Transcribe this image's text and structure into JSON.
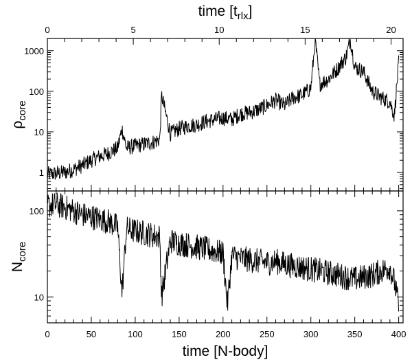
{
  "chart_data": [
    {
      "id": "density",
      "type": "line",
      "ylabel": {
        "main": "ρ",
        "sub": "core"
      },
      "yscale": "log",
      "ylim": [
        0.35,
        2000
      ],
      "yticks": [
        1,
        10,
        100,
        1000
      ],
      "ytick_labels": [
        "1",
        "10",
        "100",
        "1000"
      ],
      "top_xlabel": {
        "main": "time [t",
        "sub": "rlx",
        "close": "]"
      },
      "top_xlim": [
        0,
        20.7
      ],
      "top_xticks": [
        0,
        5,
        10,
        15,
        20
      ],
      "top_xtick_labels": [
        "0",
        "5",
        "10",
        "15",
        "20"
      ],
      "xlim": [
        0,
        405
      ],
      "grid": false,
      "legend": "none",
      "series": [
        {
          "color": "#000000",
          "x": [
            0,
            10,
            20,
            30,
            40,
            50,
            60,
            70,
            80,
            85,
            90,
            100,
            110,
            120,
            128,
            130,
            140,
            150,
            160,
            170,
            180,
            190,
            200,
            210,
            220,
            230,
            240,
            250,
            260,
            270,
            280,
            290,
            300,
            305,
            310,
            320,
            330,
            340,
            345,
            350,
            360,
            370,
            380,
            390,
            395,
            400
          ],
          "y": [
            0.9,
            0.95,
            1.0,
            1.2,
            1.5,
            2.0,
            2.5,
            3.0,
            4.0,
            12,
            4.0,
            4.5,
            5.0,
            5.5,
            6.5,
            80,
            9,
            12,
            14,
            15,
            18,
            20,
            22,
            20,
            28,
            30,
            35,
            45,
            60,
            45,
            70,
            80,
            120,
            1800,
            150,
            200,
            350,
            700,
            1900,
            400,
            300,
            100,
            70,
            55,
            25,
            500
          ]
        }
      ]
    },
    {
      "id": "count",
      "type": "line",
      "ylabel": {
        "main": "N",
        "sub": "core"
      },
      "yscale": "log",
      "ylim": [
        5,
        170
      ],
      "yticks": [
        10,
        100
      ],
      "ytick_labels": [
        "10",
        "100"
      ],
      "xlabel": "time [N-body]",
      "xlim": [
        0,
        405
      ],
      "xticks": [
        0,
        50,
        100,
        150,
        200,
        250,
        300,
        350,
        400
      ],
      "xtick_labels": [
        "0",
        "50",
        "100",
        "150",
        "200",
        "250",
        "300",
        "350",
        "400"
      ],
      "grid": false,
      "legend": "none",
      "series": [
        {
          "color": "#000000",
          "x": [
            0,
            10,
            20,
            30,
            40,
            50,
            60,
            70,
            80,
            85,
            90,
            100,
            110,
            120,
            128,
            130,
            140,
            150,
            160,
            170,
            180,
            190,
            200,
            205,
            210,
            220,
            230,
            240,
            250,
            260,
            270,
            280,
            290,
            300,
            310,
            320,
            330,
            340,
            350,
            360,
            370,
            380,
            390,
            395,
            400
          ],
          "y": [
            115,
            118,
            110,
            100,
            90,
            85,
            80,
            75,
            65,
            11,
            62,
            58,
            55,
            52,
            50,
            10,
            45,
            42,
            40,
            38,
            36,
            34,
            32,
            8,
            30,
            28,
            27,
            26,
            25,
            26,
            24,
            23,
            22,
            21,
            20,
            19,
            18,
            17,
            16,
            17,
            18,
            20,
            22,
            15,
            8
          ]
        }
      ]
    }
  ]
}
